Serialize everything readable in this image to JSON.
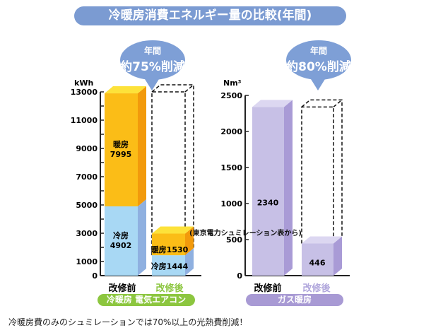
{
  "title": "冷暖房消費エネルギー量の比較(年間)",
  "caption": "冷暖房費のみのシュミレーションでは70%以上の光熱費削減！",
  "source_note": "(東京電力シュミレーション表から)",
  "chart_data": [
    {
      "type": "bar",
      "stacked": true,
      "unit": "kWh",
      "ylim": [
        0,
        13000
      ],
      "yticks": [
        0,
        1000,
        3000,
        5000,
        7000,
        9000,
        11000,
        13000
      ],
      "categories": [
        "改修前",
        "改修後"
      ],
      "series": [
        {
          "name": "冷房",
          "values": [
            4902,
            1444
          ],
          "color": "#a8d8f4"
        },
        {
          "name": "暖房",
          "values": [
            7995,
            1530
          ],
          "color": "#fbbd17"
        }
      ],
      "group_label": "冷暖房 電気エアコン",
      "group_color": "#8cc63f",
      "bubble": {
        "line1": "年間",
        "line2": "約75%削減"
      }
    },
    {
      "type": "bar",
      "unit": "Nm³",
      "ylim": [
        0,
        2500
      ],
      "yticks": [
        0,
        500,
        1000,
        1500,
        2000,
        2500
      ],
      "categories": [
        "改修前",
        "改修後"
      ],
      "values": [
        2340,
        446
      ],
      "color": "#c7c0e6",
      "group_label": "ガス暖房",
      "group_color": "#a89ad4",
      "bubble": {
        "line1": "年間",
        "line2": "約80%削減"
      }
    }
  ]
}
